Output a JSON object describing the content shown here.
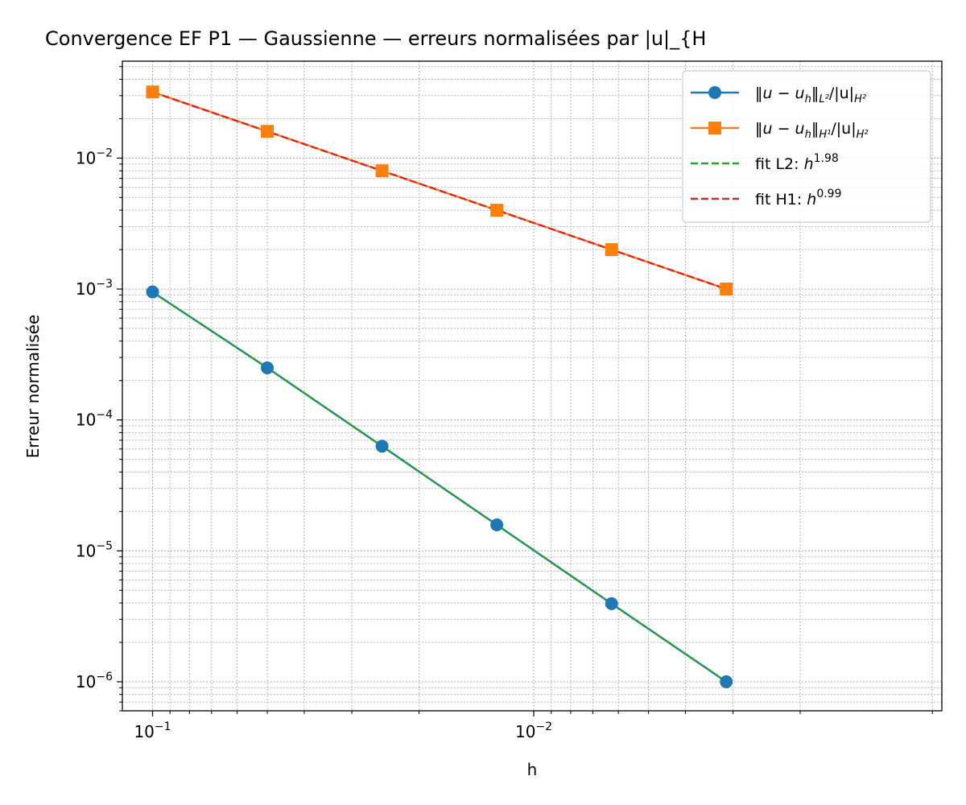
{
  "chart_data": {
    "type": "line",
    "title": "Convergence EF P1 — Gaussienne — erreurs normalisées par |u|_{H",
    "xlabel": "h",
    "ylabel": "Erreur normalisée",
    "x_scale": "log",
    "y_scale": "log",
    "x_reversed": true,
    "xlim": [
      0.12,
      0.00085
    ],
    "ylim": [
      6e-07,
      0.055
    ],
    "grid": true,
    "legend_position": "top-right",
    "x_tick_values": [
      0.1,
      0.01
    ],
    "x_tick_labels": [
      {
        "base": "10",
        "exp": "−1"
      },
      {
        "base": "10",
        "exp": "−2"
      }
    ],
    "y_tick_values": [
      1e-06,
      1e-05,
      0.0001,
      0.001,
      0.01
    ],
    "y_tick_labels": [
      {
        "base": "10",
        "exp": "−6"
      },
      {
        "base": "10",
        "exp": "−5"
      },
      {
        "base": "10",
        "exp": "−4"
      },
      {
        "base": "10",
        "exp": "−3"
      },
      {
        "base": "10",
        "exp": "−2"
      }
    ],
    "x": [
      0.1,
      0.05,
      0.025,
      0.0125,
      0.00625,
      0.003125
    ],
    "series": [
      {
        "name": "‖u − u_h‖_{L²}/|u|_{H²}",
        "legend_parts": {
          "pre": "‖",
          "mid": "u − u",
          "sub1": "h",
          "post": "‖",
          "sub2": "L²",
          "tail": "/|u|",
          "sub3": "H²"
        },
        "values": [
          0.00095,
          0.00025,
          6.3e-05,
          1.58e-05,
          3.95e-06,
          1e-06
        ],
        "color": "#1f77b4",
        "style": "solid",
        "marker": "circle"
      },
      {
        "name": "‖u − u_h‖_{H¹}/|u|_{H²}",
        "legend_parts": {
          "pre": "‖",
          "mid": "u − u",
          "sub1": "h",
          "post": "‖",
          "sub2": "H¹",
          "tail": "/|u|",
          "sub3": "H²"
        },
        "values": [
          0.032,
          0.016,
          0.008,
          0.004,
          0.002,
          0.001
        ],
        "color": "#ff7f0e",
        "style": "solid",
        "marker": "square"
      },
      {
        "name": "fit L2: h^{1.98}",
        "legend_parts": {
          "text": "fit L2: ",
          "var": "h",
          "sup": "1.98"
        },
        "values": [
          0.00095,
          0.00025,
          6.3e-05,
          1.58e-05,
          3.95e-06,
          1e-06
        ],
        "color": "#2ca02c",
        "style": "dashed",
        "marker": "none"
      },
      {
        "name": "fit H1: h^{0.99}",
        "legend_parts": {
          "text": "fit H1: ",
          "var": "h",
          "sup": "0.99"
        },
        "values": [
          0.032,
          0.016,
          0.008,
          0.004,
          0.002,
          0.001
        ],
        "color": "#d62728",
        "style": "dashed",
        "marker": "none"
      }
    ]
  }
}
